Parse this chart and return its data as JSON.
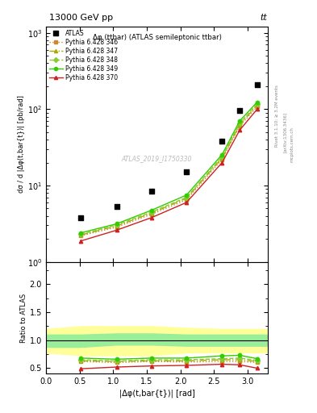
{
  "title_top": "13000 GeV pp",
  "title_right": "tt",
  "inner_title": "Δφ (ttbar) (ATLAS semileptonic ttbar)",
  "watermark": "ATLAS_2019_I1750330",
  "ylabel_main": "dσ / d |Δφ(t,bar{t})| [pb/rad]",
  "ylabel_ratio": "Ratio to ATLAS",
  "xlabel": "|Δφ(t,bar{t})| [rad]",
  "x_data": [
    0.52,
    1.05,
    1.57,
    2.09,
    2.62,
    2.88,
    3.14
  ],
  "atlas_y": [
    3.8,
    5.3,
    8.5,
    15.0,
    38.0,
    95.0,
    210.0
  ],
  "pythia_346_y": [
    2.2,
    2.85,
    4.2,
    6.5,
    22.0,
    60.0,
    108.0
  ],
  "pythia_347_y": [
    2.25,
    2.95,
    4.35,
    6.8,
    23.0,
    62.0,
    113.0
  ],
  "pythia_348_y": [
    2.3,
    3.05,
    4.5,
    7.0,
    24.0,
    65.0,
    118.0
  ],
  "pythia_349_y": [
    2.4,
    3.15,
    4.75,
    7.5,
    25.5,
    70.0,
    124.0
  ],
  "pythia_370_y": [
    1.88,
    2.6,
    3.8,
    6.0,
    20.0,
    53.0,
    100.0
  ],
  "ratio_346": [
    0.62,
    0.6,
    0.62,
    0.61,
    0.62,
    0.62,
    0.6
  ],
  "ratio_347": [
    0.63,
    0.62,
    0.63,
    0.63,
    0.65,
    0.65,
    0.62
  ],
  "ratio_348": [
    0.65,
    0.63,
    0.65,
    0.65,
    0.67,
    0.68,
    0.64
  ],
  "ratio_349": [
    0.68,
    0.66,
    0.68,
    0.68,
    0.72,
    0.73,
    0.67
  ],
  "ratio_370": [
    0.49,
    0.52,
    0.54,
    0.55,
    0.57,
    0.56,
    0.5
  ],
  "band_x": [
    0.0,
    0.52,
    1.04,
    1.57,
    2.09,
    2.62,
    3.14,
    3.3
  ],
  "band_green_low": [
    0.88,
    0.88,
    0.92,
    0.92,
    0.9,
    0.9,
    0.9,
    0.9
  ],
  "band_green_high": [
    1.1,
    1.1,
    1.12,
    1.12,
    1.1,
    1.1,
    1.1,
    1.1
  ],
  "band_yellow_low": [
    0.78,
    0.73,
    0.73,
    0.73,
    0.78,
    0.78,
    0.78,
    0.78
  ],
  "band_yellow_high": [
    1.2,
    1.25,
    1.25,
    1.25,
    1.22,
    1.2,
    1.2,
    1.2
  ],
  "color_346": "#cc8833",
  "color_347": "#aaaa00",
  "color_348": "#88cc33",
  "color_349": "#33cc00",
  "color_370": "#cc2222",
  "ylim_main_low": 1.0,
  "ylim_main_high": 1200.0,
  "ylim_ratio_low": 0.4,
  "ylim_ratio_high": 2.4,
  "xlim_low": 0.0,
  "xlim_high": 3.3
}
